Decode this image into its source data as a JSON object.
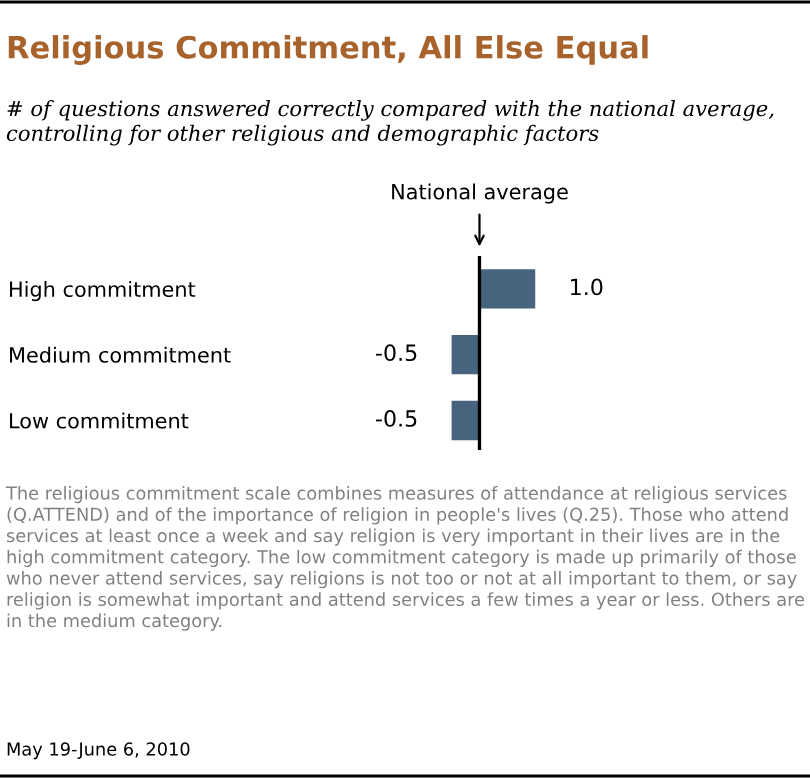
{
  "chart_data": {
    "type": "bar",
    "orientation": "horizontal",
    "title": "Religious Commitment, All Else Equal",
    "subtitle": "# of questions answered correctly compared with the national average, controlling for other religious and demographic factors",
    "categories": [
      "High commitment",
      "Medium commitment",
      "Low commitment"
    ],
    "values": [
      1.0,
      -0.5,
      -0.5
    ],
    "value_labels": [
      "1.0",
      "-0.5",
      "-0.5"
    ],
    "color": "#46647e",
    "tick_labels": "y",
    "grid": false,
    "ref_lines": [
      {
        "axis": "x",
        "value": 0,
        "label": "National average",
        "color": "#000000"
      }
    ],
    "annotations": [
      "The religious commitment scale combines measures of attendance at religious services (Q.ATTEND) and of the importance of religion in people's lives (Q.25). Those who attend services at least once a week and say religion is very important in their lives are in the high commitment category. The low commitment category is made up primarily of those who never attend services, say religions is not too or not at all important to them, or say religion is somewhat important and attend services a few times a year or less. Others are in the medium category.",
      "May 19-June 6, 2010"
    ]
  }
}
